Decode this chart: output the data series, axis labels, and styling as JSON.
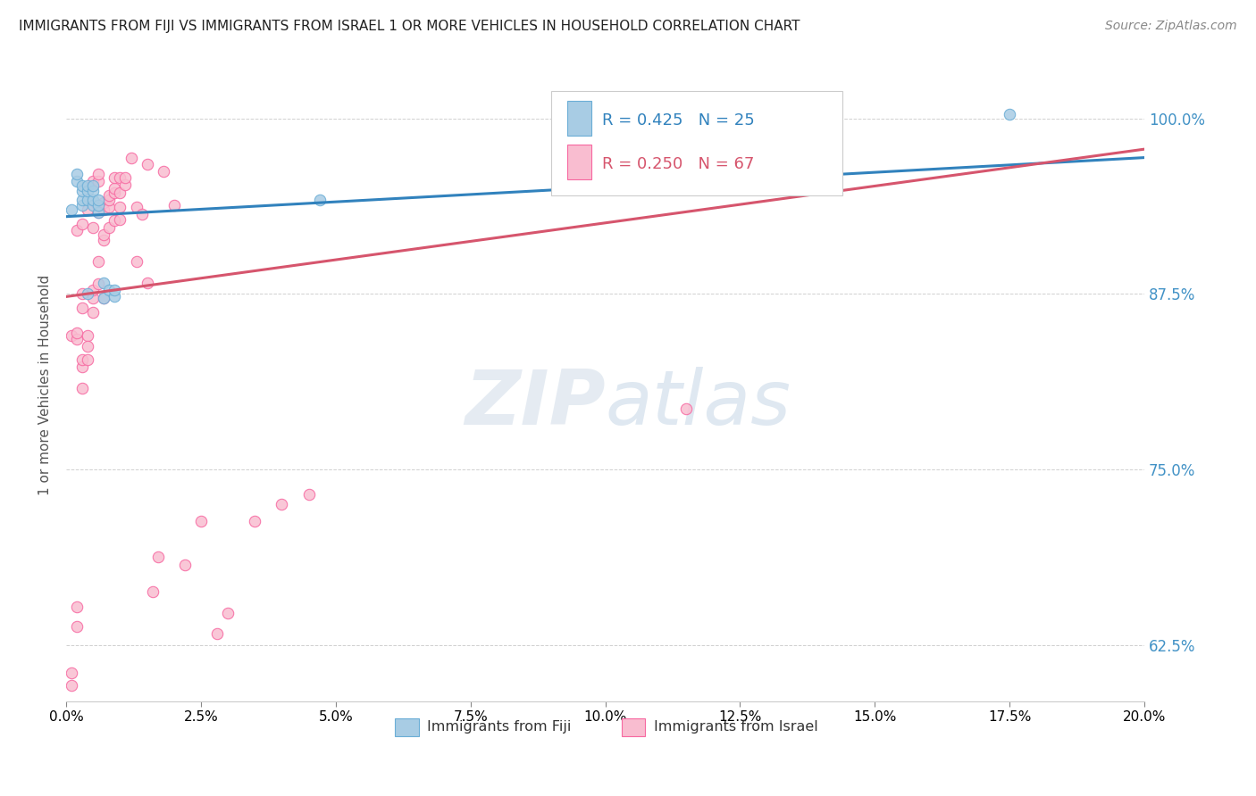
{
  "title": "IMMIGRANTS FROM FIJI VS IMMIGRANTS FROM ISRAEL 1 OR MORE VEHICLES IN HOUSEHOLD CORRELATION CHART",
  "source": "Source: ZipAtlas.com",
  "ylabel": "1 or more Vehicles in Household",
  "ytick_labels": [
    "62.5%",
    "75.0%",
    "87.5%",
    "100.0%"
  ],
  "ytick_values": [
    0.625,
    0.75,
    0.875,
    1.0
  ],
  "xtick_values": [
    0.0,
    0.025,
    0.05,
    0.075,
    0.1,
    0.125,
    0.15,
    0.175,
    0.2
  ],
  "xlim": [
    0.0,
    0.2
  ],
  "ylim": [
    0.585,
    1.035
  ],
  "fiji_R": 0.425,
  "fiji_N": 25,
  "israel_R": 0.25,
  "israel_N": 67,
  "fiji_color": "#a8cce4",
  "fiji_color_edge": "#6baed6",
  "israel_color": "#f9bdd0",
  "israel_color_edge": "#f768a1",
  "fiji_line_color": "#3182bd",
  "israel_line_color": "#d6556d",
  "fiji_x": [
    0.001,
    0.002,
    0.002,
    0.003,
    0.003,
    0.003,
    0.003,
    0.004,
    0.004,
    0.004,
    0.005,
    0.005,
    0.005,
    0.005,
    0.006,
    0.006,
    0.006,
    0.007,
    0.007,
    0.008,
    0.009,
    0.009,
    0.047,
    0.175,
    0.004
  ],
  "fiji_y": [
    0.935,
    0.955,
    0.96,
    0.938,
    0.942,
    0.948,
    0.952,
    0.942,
    0.948,
    0.952,
    0.938,
    0.942,
    0.948,
    0.952,
    0.933,
    0.938,
    0.942,
    0.872,
    0.883,
    0.878,
    0.873,
    0.878,
    0.942,
    1.003,
    0.875
  ],
  "israel_x": [
    0.001,
    0.001,
    0.001,
    0.002,
    0.002,
    0.002,
    0.002,
    0.002,
    0.003,
    0.003,
    0.003,
    0.003,
    0.003,
    0.003,
    0.004,
    0.004,
    0.004,
    0.004,
    0.005,
    0.005,
    0.005,
    0.005,
    0.005,
    0.005,
    0.006,
    0.006,
    0.006,
    0.006,
    0.006,
    0.007,
    0.007,
    0.007,
    0.007,
    0.007,
    0.008,
    0.008,
    0.008,
    0.008,
    0.009,
    0.009,
    0.009,
    0.009,
    0.01,
    0.01,
    0.01,
    0.01,
    0.011,
    0.011,
    0.012,
    0.013,
    0.013,
    0.014,
    0.015,
    0.015,
    0.016,
    0.017,
    0.018,
    0.02,
    0.022,
    0.025,
    0.028,
    0.03,
    0.035,
    0.04,
    0.045,
    0.115,
    0.135
  ],
  "israel_y": [
    0.596,
    0.605,
    0.845,
    0.638,
    0.652,
    0.843,
    0.847,
    0.92,
    0.823,
    0.828,
    0.808,
    0.865,
    0.875,
    0.925,
    0.828,
    0.845,
    0.838,
    0.935,
    0.872,
    0.862,
    0.922,
    0.878,
    0.952,
    0.955,
    0.898,
    0.882,
    0.933,
    0.955,
    0.96,
    0.872,
    0.913,
    0.917,
    0.935,
    0.94,
    0.937,
    0.922,
    0.942,
    0.945,
    0.927,
    0.947,
    0.95,
    0.958,
    0.947,
    0.937,
    0.928,
    0.958,
    0.953,
    0.958,
    0.972,
    0.898,
    0.937,
    0.932,
    0.883,
    0.967,
    0.663,
    0.688,
    0.962,
    0.938,
    0.682,
    0.713,
    0.633,
    0.648,
    0.713,
    0.725,
    0.732,
    0.793,
    1.005
  ],
  "fiji_trend_x": [
    0.0,
    0.2
  ],
  "fiji_trend_y": [
    0.93,
    0.972
  ],
  "israel_trend_x": [
    0.0,
    0.2
  ],
  "israel_trend_y": [
    0.873,
    0.978
  ],
  "watermark_zip": "ZIP",
  "watermark_atlas": "atlas",
  "marker_size": 80,
  "background_color": "#ffffff",
  "grid_color": "#d0d0d0",
  "title_color": "#222222",
  "right_axis_color": "#4292c6",
  "legend_fiji_label": "Immigrants from Fiji",
  "legend_israel_label": "Immigrants from Israel"
}
